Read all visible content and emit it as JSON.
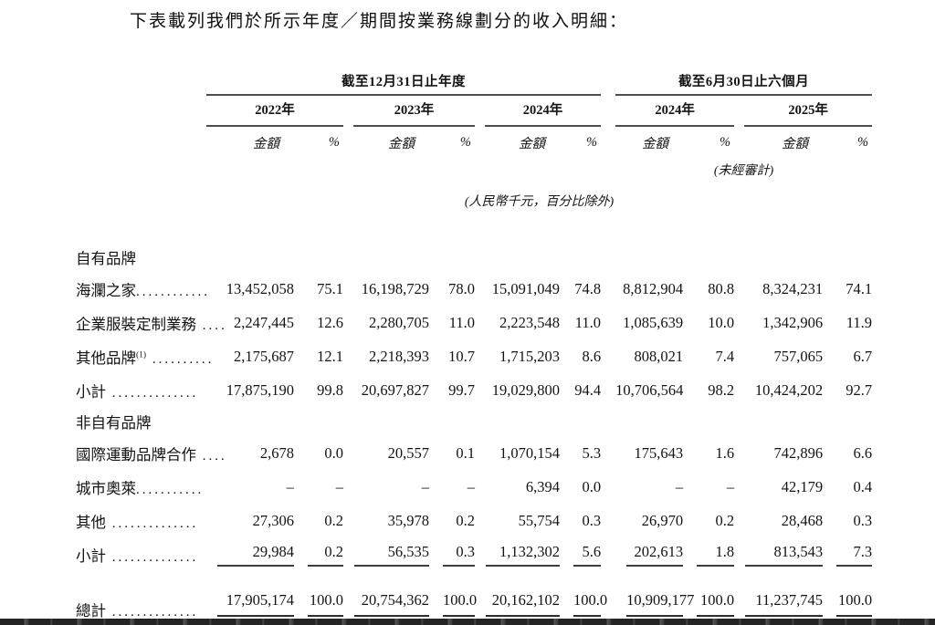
{
  "page": {
    "title": "下表載列我們於所示年度／期間按業務線劃分的收入明細："
  },
  "table": {
    "groups": [
      {
        "label": "截至12月31日止年度",
        "years": [
          "2022年",
          "2023年",
          "2024年"
        ]
      },
      {
        "label": "截至6月30日止六個月",
        "years": [
          "2024年",
          "2025年"
        ]
      }
    ],
    "amount_header": "金額",
    "percent_header": "%",
    "unaudited_note": "(未經審計)",
    "unit_note": "(人民幣千元，百分比除外)",
    "rows": [
      {
        "type": "section",
        "label": "自有品牌"
      },
      {
        "type": "data",
        "label": "海瀾之家",
        "leader": "............",
        "cells": [
          "13,452,058",
          "75.1",
          "16,198,729",
          "78.0",
          "15,091,049",
          "74.8",
          "8,812,904",
          "80.8",
          "8,324,231",
          "74.1"
        ]
      },
      {
        "type": "data",
        "label": "企業服裝定制業務",
        "leader": " ....",
        "cells": [
          "2,247,445",
          "12.6",
          "2,280,705",
          "11.0",
          "2,223,548",
          "11.0",
          "1,085,639",
          "10.0",
          "1,342,906",
          "11.9"
        ]
      },
      {
        "type": "data",
        "label": "其他品牌",
        "sup": "(1)",
        "leader": " ..........",
        "cells": [
          "2,175,687",
          "12.1",
          "2,218,393",
          "10.7",
          "1,715,203",
          "8.6",
          "808,021",
          "7.4",
          "757,065",
          "6.7"
        ]
      },
      {
        "type": "subtotal",
        "label": "小計",
        "leader": " ..............",
        "cells": [
          "17,875,190",
          "99.8",
          "20,697,827",
          "99.7",
          "19,029,800",
          "94.4",
          "10,706,564",
          "98.2",
          "10,424,202",
          "92.7"
        ]
      },
      {
        "type": "section",
        "label": "非自有品牌"
      },
      {
        "type": "data",
        "label": "國際運動品牌合作",
        "leader": " ....",
        "cells": [
          "2,678",
          "0.0",
          "20,557",
          "0.1",
          "1,070,154",
          "5.3",
          "175,643",
          "1.6",
          "742,896",
          "6.6"
        ]
      },
      {
        "type": "data",
        "label": "城市奧萊",
        "leader": "...........",
        "cells": [
          "–",
          "–",
          "–",
          "–",
          "6,394",
          "0.0",
          "–",
          "–",
          "42,179",
          "0.4"
        ]
      },
      {
        "type": "data",
        "label": "其他",
        "leader": " ..............",
        "cells": [
          "27,306",
          "0.2",
          "35,978",
          "0.2",
          "55,754",
          "0.3",
          "26,970",
          "0.2",
          "28,468",
          "0.3"
        ]
      },
      {
        "type": "subtotal-ruled",
        "label": "小計",
        "leader": " ..............",
        "cells": [
          "29,984",
          "0.2",
          "56,535",
          "0.3",
          "1,132,302",
          "5.6",
          "202,613",
          "1.8",
          "813,543",
          "7.3"
        ]
      },
      {
        "type": "total",
        "label": "總計",
        "leader": " ..............",
        "cells": [
          "17,905,174",
          "100.0",
          "20,754,362",
          "100.0",
          "20,162,102",
          "100.0",
          "10,909,177",
          "100.0",
          "11,237,745",
          "100.0"
        ]
      }
    ]
  }
}
